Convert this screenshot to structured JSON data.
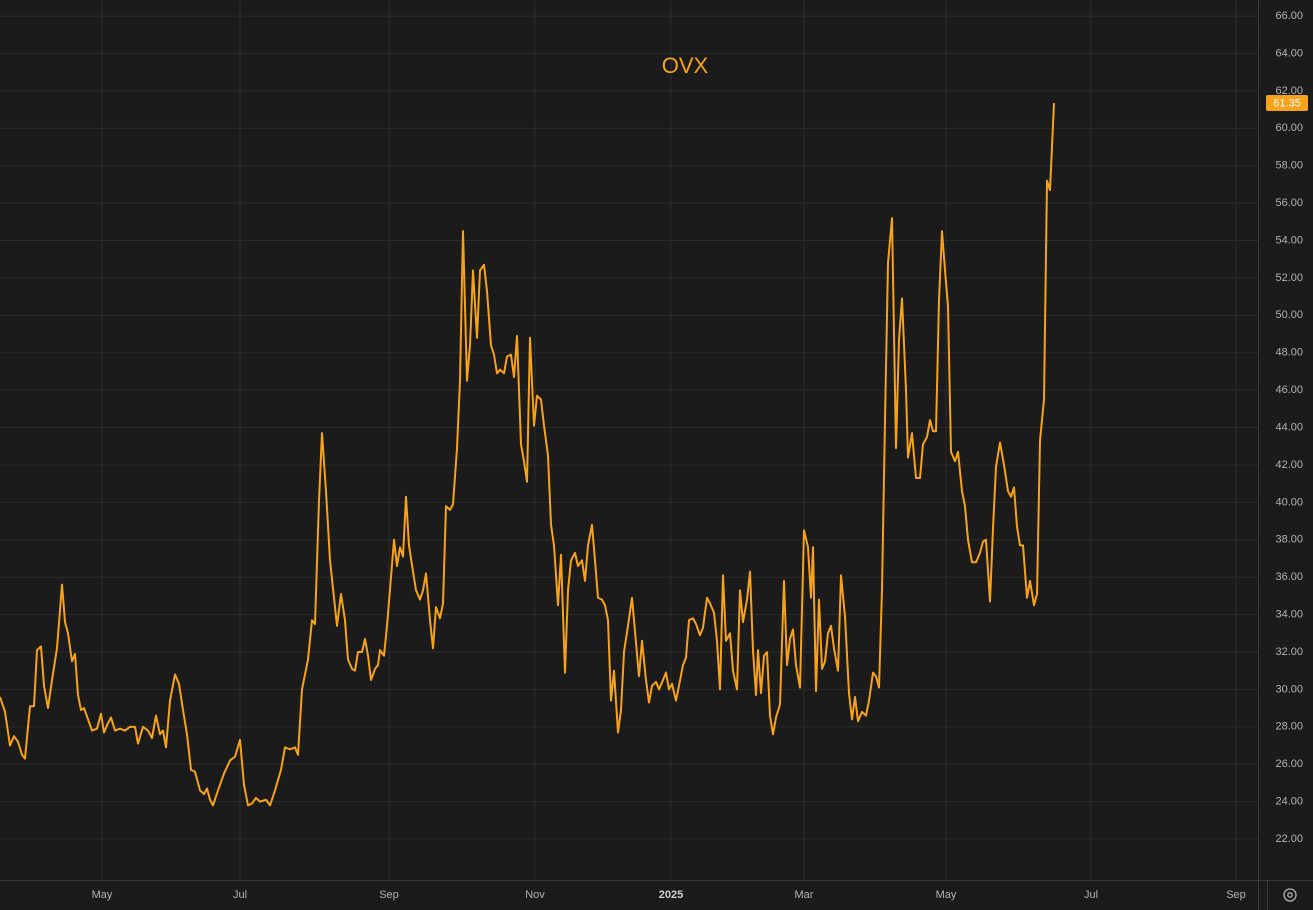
{
  "chart_data": {
    "type": "line",
    "title": "OVX",
    "color": "#f7a21b",
    "grid": true,
    "x": [
      0,
      1.5,
      3,
      4.2,
      5.4,
      6.6,
      7.5,
      9,
      10.2,
      11.1,
      12.3,
      13.2,
      14.4,
      15.6,
      17.1,
      18.6,
      19.5,
      20.4,
      21.6,
      22.5,
      23.4,
      24.3,
      25.2,
      26.4,
      27.6,
      29.1,
      30.3,
      31.2,
      32.4,
      33.3,
      34.5,
      36,
      37.5,
      39,
      40.5,
      41.4,
      42.9,
      44.4,
      45.6,
      46.8,
      48,
      48.9,
      49.8,
      51,
      52.5,
      53.7,
      54.9,
      56.1,
      57.3,
      58.5,
      60,
      61.2,
      62.1,
      63,
      63.9,
      65.4,
      67.2,
      69,
      70.5,
      72,
      73.2,
      74.4,
      75.6,
      76.8,
      78,
      79.8,
      81,
      82.5,
      84.3,
      85.5,
      87,
      88.5,
      89.4,
      90.6,
      92.4,
      93.6,
      94.5,
      95.7,
      96.6,
      97.8,
      99,
      100.2,
      101.1,
      102.3,
      103.5,
      104.4,
      105.6,
      106.5,
      107.4,
      108.6,
      109.5,
      110.4,
      111.3,
      112.5,
      113.4,
      114,
      115.2,
      116.1,
      117.3,
      118.2,
      119.1,
      120,
      120.9,
      121.8,
      122.7,
      123.9,
      124.8,
      126,
      126.9,
      127.8,
      129,
      129.9,
      130.8,
      132,
      132.9,
      133.8,
      135,
      135.9,
      137.1,
      138,
      138.9,
      140.1,
      141,
      141.9,
      143.1,
      144,
      145.2,
      146.1,
      147.3,
      148.2,
      149.1,
      150,
      151.2,
      152.1,
      153.3,
      154.2,
      155.1,
      156.3,
      157.2,
      158.1,
      159,
      160.2,
      161.1,
      162.3,
      163.2,
      164.4,
      165.3,
      166.2,
      167.4,
      168.3,
      169.5,
      170.4,
      171.3,
      172.5,
      173.4,
      174.6,
      175.5,
      176.4,
      177.6,
      178.5,
      179.4,
      180.6,
      181.5,
      182.4,
      183.3,
      184.2,
      185.4,
      186.3,
      187.2,
      188.4,
      189.6,
      190.5,
      191.7,
      192.6,
      193.8,
      194.7,
      195.6,
      196.8,
      197.7,
      198.9,
      199.8,
      200.7,
      201.6,
      202.8,
      203.7,
      204.9,
      205.8,
      206.7,
      207.9,
      208.8,
      210,
      210.9,
      212.1,
      213,
      214.2,
      215.1,
      216,
      216.9,
      217.8,
      219,
      219.9,
      221.1,
      222,
      222.9,
      224.1,
      225,
      225.9,
      226.8,
      227.4,
      228.3,
      229.2,
      230.1,
      231,
      231.9,
      232.8,
      234,
      235.2,
      236.1,
      237,
      237.9,
      238.8,
      240,
      241.2,
      242.4,
      243.3,
      243.9,
      244.8,
      245.7,
      246.6,
      247.5,
      248.4,
      249.3,
      250.2,
      251.4,
      252.3,
      253.5,
      254.7,
      255.6,
      256.5,
      257.4,
      258.6,
      259.8,
      260.7,
      261.9,
      262.8,
      263.7,
      264.6,
      265.5,
      266.4,
      267.6,
      268.8,
      269.7,
      270.6,
      271.8,
      272.4,
      273.6,
      274.8,
      276,
      276.9,
      278.1,
      279,
      279.9,
      280.8,
      281.7,
      282.6,
      283.5,
      284.4,
      285.3,
      286.5,
      287.4,
      288.6,
      289.5,
      290.4,
      291.6,
      292.8,
      294,
      294.9,
      295.8,
      297,
      297.9,
      298.8,
      300,
      301.2,
      302.4,
      303.3,
      304.2,
      305.1,
      306,
      306.9,
      308.1,
      309,
      310.2,
      311.1,
      312,
      313.2,
      314.1,
      315,
      316.2
    ],
    "values": [
      29.6,
      28.8,
      27.0,
      27.5,
      27.2,
      26.5,
      26.3,
      29.1,
      29.1,
      32.1,
      32.3,
      30.2,
      29.0,
      30.5,
      32.2,
      35.6,
      33.6,
      33.0,
      31.5,
      31.9,
      29.7,
      28.9,
      29.0,
      28.4,
      27.8,
      27.9,
      28.7,
      27.7,
      28.2,
      28.5,
      27.8,
      27.9,
      27.8,
      28.0,
      28.0,
      27.1,
      28.0,
      27.8,
      27.4,
      28.6,
      27.6,
      27.8,
      26.9,
      29.4,
      30.8,
      30.3,
      28.9,
      27.6,
      25.7,
      25.6,
      24.6,
      24.4,
      24.7,
      24.1,
      23.8,
      24.6,
      25.5,
      26.2,
      26.4,
      27.3,
      24.9,
      23.8,
      23.9,
      24.2,
      24.0,
      24.1,
      23.8,
      24.6,
      25.7,
      26.9,
      26.8,
      26.9,
      26.5,
      30.0,
      31.6,
      33.7,
      33.5,
      40.1,
      43.7,
      40.6,
      36.9,
      34.9,
      33.4,
      35.1,
      33.7,
      31.6,
      31.1,
      31.0,
      32.0,
      32.0,
      32.7,
      31.8,
      30.5,
      31.1,
      31.3,
      32.1,
      31.8,
      33.4,
      36.0,
      38.0,
      36.6,
      37.6,
      37.1,
      40.3,
      37.7,
      36.3,
      35.3,
      34.8,
      35.3,
      36.2,
      33.7,
      32.2,
      34.4,
      33.8,
      34.6,
      39.8,
      39.6,
      39.9,
      42.9,
      46.5,
      54.5,
      46.5,
      48.4,
      52.4,
      48.8,
      52.4,
      52.7,
      51.3,
      48.4,
      47.9,
      46.9,
      47.1,
      46.9,
      47.8,
      47.9,
      46.7,
      48.9,
      43.1,
      42.2,
      41.1,
      48.8,
      44.1,
      45.7,
      45.5,
      44.1,
      42.5,
      38.8,
      37.7,
      34.5,
      37.2,
      30.9,
      35.3,
      36.9,
      37.3,
      36.6,
      36.9,
      35.8,
      37.7,
      38.8,
      36.9,
      34.9,
      34.8,
      34.5,
      33.7,
      29.4,
      31.0,
      27.7,
      28.9,
      32.0,
      33.4,
      34.9,
      33.1,
      30.7,
      32.6,
      30.5,
      29.3,
      30.2,
      30.4,
      30.0,
      30.5,
      30.9,
      30.0,
      30.3,
      29.4,
      30.2,
      31.3,
      31.7,
      33.7,
      33.8,
      33.5,
      32.9,
      33.3,
      34.9,
      34.6,
      34.1,
      32.6,
      30.0,
      36.1,
      32.6,
      33.0,
      31.0,
      30.0,
      35.3,
      33.6,
      34.8,
      36.3,
      32.1,
      29.7,
      32.1,
      29.8,
      31.8,
      32.0,
      28.6,
      27.6,
      28.5,
      29.2,
      35.8,
      31.3,
      32.7,
      33.2,
      31.3,
      30.1,
      38.5,
      37.6,
      34.9,
      37.6,
      29.9,
      34.8,
      31.1,
      31.5,
      33.0,
      33.4,
      32.2,
      31.0,
      36.1,
      33.9,
      29.8,
      28.4,
      29.6,
      28.3,
      28.8,
      28.6,
      29.4,
      30.9,
      30.7,
      30.1,
      35.3,
      44.4,
      52.8,
      55.2,
      42.9,
      48.7,
      50.9,
      46.0,
      42.4,
      43.7,
      41.3,
      41.3,
      43.1,
      43.5,
      44.4,
      43.8,
      43.8,
      50.8,
      54.5,
      52.4,
      50.5,
      42.7,
      42.2,
      42.7,
      40.6,
      39.8,
      38.0,
      36.8,
      36.8,
      37.3,
      37.9,
      38.0,
      34.7,
      38.6,
      41.9,
      43.2,
      42.0,
      40.6,
      40.3,
      40.8,
      38.7,
      37.7,
      37.7,
      34.9,
      35.8,
      34.5,
      35.1,
      43.3,
      45.5,
      57.2,
      56.7,
      61.35
    ],
    "xlim": [
      0,
      377.4
    ],
    "xticks": [
      {
        "value": 30.6,
        "label": "May"
      },
      {
        "value": 72,
        "label": "Jul"
      },
      {
        "value": 116.7,
        "label": "Sep"
      },
      {
        "value": 160.5,
        "label": "Nov"
      },
      {
        "value": 201.3,
        "label": "2025"
      },
      {
        "value": 241.2,
        "label": "Mar"
      },
      {
        "value": 283.8,
        "label": "May"
      },
      {
        "value": 327.3,
        "label": "Jul"
      },
      {
        "value": 370.8,
        "label": "Sep"
      }
    ],
    "ylim": [
      19.81,
      66.86
    ],
    "yticks": [
      {
        "value": 22,
        "label": "22.00"
      },
      {
        "value": 24,
        "label": "24.00"
      },
      {
        "value": 26,
        "label": "26.00"
      },
      {
        "value": 28,
        "label": "28.00"
      },
      {
        "value": 30,
        "label": "30.00"
      },
      {
        "value": 32,
        "label": "32.00"
      },
      {
        "value": 34,
        "label": "34.00"
      },
      {
        "value": 36,
        "label": "36.00"
      },
      {
        "value": 38,
        "label": "38.00"
      },
      {
        "value": 40,
        "label": "40.00"
      },
      {
        "value": 42,
        "label": "42.00"
      },
      {
        "value": 44,
        "label": "44.00"
      },
      {
        "value": 46,
        "label": "46.00"
      },
      {
        "value": 48,
        "label": "48.00"
      },
      {
        "value": 50,
        "label": "50.00"
      },
      {
        "value": 52,
        "label": "52.00"
      },
      {
        "value": 54,
        "label": "54.00"
      },
      {
        "value": 56,
        "label": "56.00"
      },
      {
        "value": 58,
        "label": "58.00"
      },
      {
        "value": 60,
        "label": "60.00"
      },
      {
        "value": 62,
        "label": "62.00"
      },
      {
        "value": 64,
        "label": "64.00"
      },
      {
        "value": 66,
        "label": "66.00"
      }
    ]
  }
}
